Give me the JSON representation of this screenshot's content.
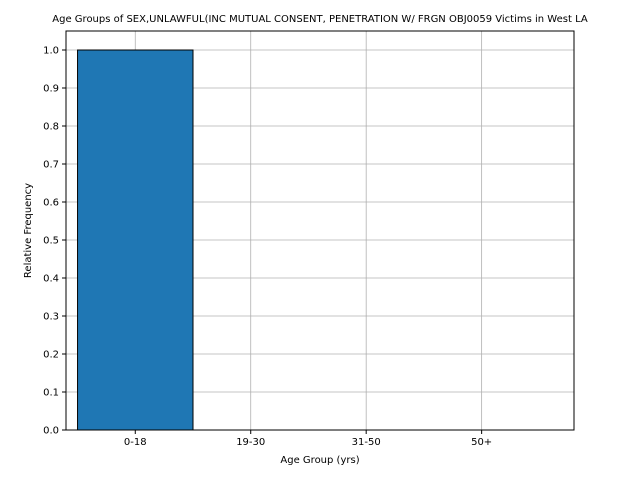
{
  "chart_data": {
    "type": "bar",
    "title": "Age Groups of SEX,UNLAWFUL(INC MUTUAL CONSENT, PENETRATION W/ FRGN OBJ0059 Victims in West LA",
    "xlabel": "Age Group (yrs)",
    "ylabel": "Relative Frequency",
    "categories": [
      "0-18",
      "19-30",
      "31-50",
      "50+"
    ],
    "values": [
      1.0,
      0.0,
      0.0,
      0.0
    ],
    "ylim": [
      0.0,
      1.05
    ],
    "yticks": [
      0.0,
      0.1,
      0.2,
      0.3,
      0.4,
      0.5,
      0.6,
      0.7,
      0.8,
      0.9,
      1.0
    ],
    "ytick_labels": [
      "0.0",
      "0.1",
      "0.2",
      "0.3",
      "0.4",
      "0.5",
      "0.6",
      "0.7",
      "0.8",
      "0.9",
      "1.0"
    ],
    "grid": true,
    "legend": "none",
    "bar_color": "#1f77b4",
    "bar_edge_color": "#000000"
  }
}
